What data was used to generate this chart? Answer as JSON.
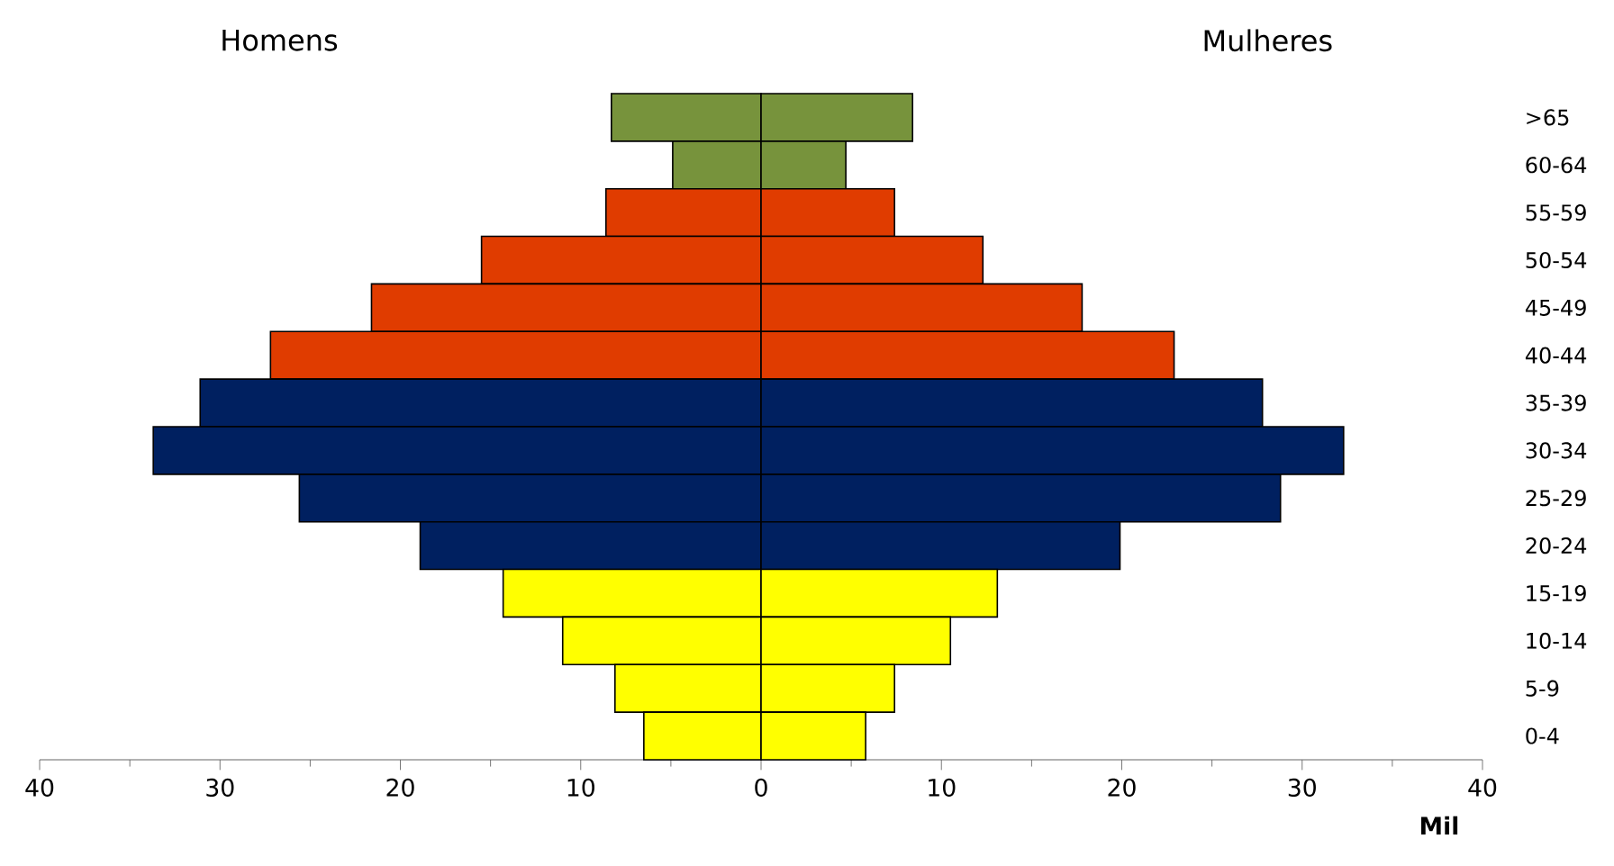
{
  "chart_data": {
    "type": "bar",
    "orientation": "horizontal",
    "stacked": true,
    "xlabel": "Mil",
    "categories": [
      ">65",
      "60-64",
      "55-59",
      "50-54",
      "45-49",
      "40-44",
      "35-39",
      "30-34",
      "25-29",
      "20-24",
      "15-19",
      "10-14",
      "5-9",
      "0-4"
    ],
    "series": [
      {
        "values": [
          -8.3,
          -4.9,
          -8.6,
          -15.5,
          -21.6,
          -27.2,
          -31.1,
          -33.7,
          -25.6,
          -18.9,
          -14.3,
          -11.0,
          -8.1,
          -6.5
        ],
        "colors": [
          "#77933c",
          "#77933c",
          "#e03c00",
          "#e03c00",
          "#e03c00",
          "#e03c00",
          "#002060",
          "#002060",
          "#002060",
          "#002060",
          "#ffff00",
          "#ffff00",
          "#ffff00",
          "#ffff00"
        ]
      },
      {
        "values": [
          8.4,
          4.7,
          7.4,
          12.3,
          17.8,
          22.9,
          27.8,
          32.3,
          28.8,
          19.9,
          13.1,
          10.5,
          7.4,
          5.8
        ],
        "colors": [
          "#77933c",
          "#77933c",
          "#e03c00",
          "#e03c00",
          "#e03c00",
          "#e03c00",
          "#002060",
          "#002060",
          "#002060",
          "#002060",
          "#ffff00",
          "#ffff00",
          "#ffff00",
          "#ffff00"
        ]
      }
    ],
    "xlim": [
      -40,
      40
    ],
    "xticks": [
      {
        "value": -40,
        "label": "40"
      },
      {
        "value": -30,
        "label": "30"
      },
      {
        "value": -20,
        "label": "20"
      },
      {
        "value": -10,
        "label": "10"
      },
      0,
      10,
      20,
      30,
      40
    ],
    "annotations": [
      "Homens",
      "Mulheres"
    ],
    "grid": false
  }
}
